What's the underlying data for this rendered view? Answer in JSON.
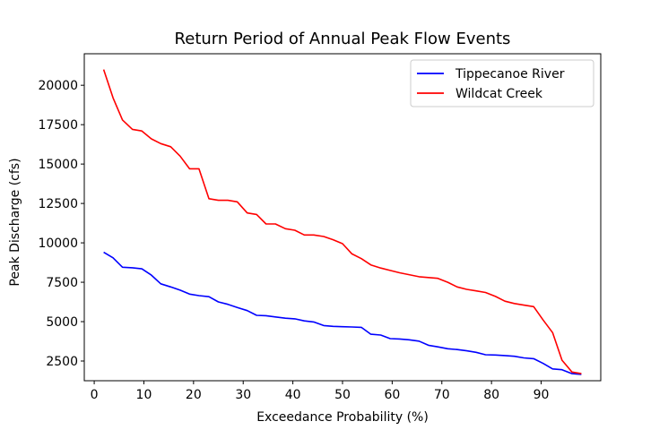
{
  "chart_data": {
    "type": "line",
    "title": "Return Period of Annual Peak Flow Events",
    "xlabel": "Exceedance Probability (%)",
    "ylabel": "Peak Discharge (cfs)",
    "xlim": [
      -2,
      102
    ],
    "ylim": [
      1250,
      22000
    ],
    "xticks": [
      0,
      10,
      20,
      30,
      40,
      50,
      60,
      70,
      80,
      90
    ],
    "yticks": [
      2500,
      5000,
      7500,
      10000,
      12500,
      15000,
      17500,
      20000
    ],
    "xtick_labels": [
      "0",
      "10",
      "20",
      "30",
      "40",
      "50",
      "60",
      "70",
      "80",
      "90"
    ],
    "ytick_labels": [
      "2500",
      "5000",
      "7500",
      "10000",
      "12500",
      "15000",
      "17500",
      "20000"
    ],
    "grid": false,
    "legend_position": "top-right",
    "series": [
      {
        "name": "Tippecanoe River",
        "color": "#0000ff",
        "x": [
          1.9,
          3.8,
          5.7,
          7.7,
          9.6,
          11.5,
          13.4,
          15.4,
          17.3,
          19.2,
          21.1,
          23.1,
          25.0,
          26.9,
          28.8,
          30.8,
          32.7,
          34.6,
          36.5,
          38.5,
          40.4,
          42.3,
          44.2,
          46.2,
          48.1,
          50.0,
          51.9,
          53.8,
          55.7,
          57.7,
          59.6,
          61.5,
          63.4,
          65.4,
          67.3,
          69.2,
          71.2,
          73.1,
          75.0,
          76.9,
          78.8,
          80.8,
          82.7,
          84.6,
          86.5,
          88.5,
          90.4,
          92.3,
          94.2,
          96.2,
          98.1
        ],
        "y": [
          9400,
          9050,
          8450,
          8420,
          8350,
          7950,
          7400,
          7200,
          7000,
          6750,
          6650,
          6580,
          6250,
          6100,
          5900,
          5700,
          5400,
          5380,
          5300,
          5220,
          5180,
          5050,
          4980,
          4750,
          4700,
          4680,
          4660,
          4640,
          4200,
          4150,
          3920,
          3900,
          3850,
          3760,
          3500,
          3400,
          3280,
          3230,
          3150,
          3050,
          2900,
          2880,
          2850,
          2800,
          2700,
          2650,
          2350,
          2000,
          1950,
          1700,
          1650
        ]
      },
      {
        "name": "Wildcat Creek",
        "color": "#ff0000",
        "x": [
          1.9,
          3.8,
          5.7,
          7.7,
          9.6,
          11.5,
          13.4,
          15.4,
          17.3,
          19.2,
          21.1,
          23.1,
          25.0,
          26.9,
          28.8,
          30.8,
          32.7,
          34.6,
          36.5,
          38.5,
          40.4,
          42.3,
          44.2,
          46.2,
          48.1,
          50.0,
          51.9,
          53.8,
          55.7,
          57.7,
          59.6,
          61.5,
          63.4,
          65.4,
          67.3,
          69.2,
          71.2,
          73.1,
          75.0,
          76.9,
          78.8,
          80.8,
          82.7,
          84.6,
          86.5,
          88.5,
          90.4,
          92.3,
          94.2,
          96.2,
          98.1
        ],
        "y": [
          21000,
          19200,
          17800,
          17200,
          17100,
          16600,
          16300,
          16100,
          15500,
          14700,
          14700,
          12800,
          12700,
          12700,
          12600,
          11900,
          11800,
          11200,
          11200,
          10900,
          10800,
          10500,
          10500,
          10400,
          10200,
          9950,
          9300,
          9000,
          8600,
          8400,
          8250,
          8100,
          7980,
          7850,
          7800,
          7750,
          7500,
          7200,
          7050,
          6950,
          6850,
          6600,
          6300,
          6150,
          6050,
          5950,
          5100,
          4300,
          2550,
          1800,
          1700
        ]
      }
    ]
  }
}
